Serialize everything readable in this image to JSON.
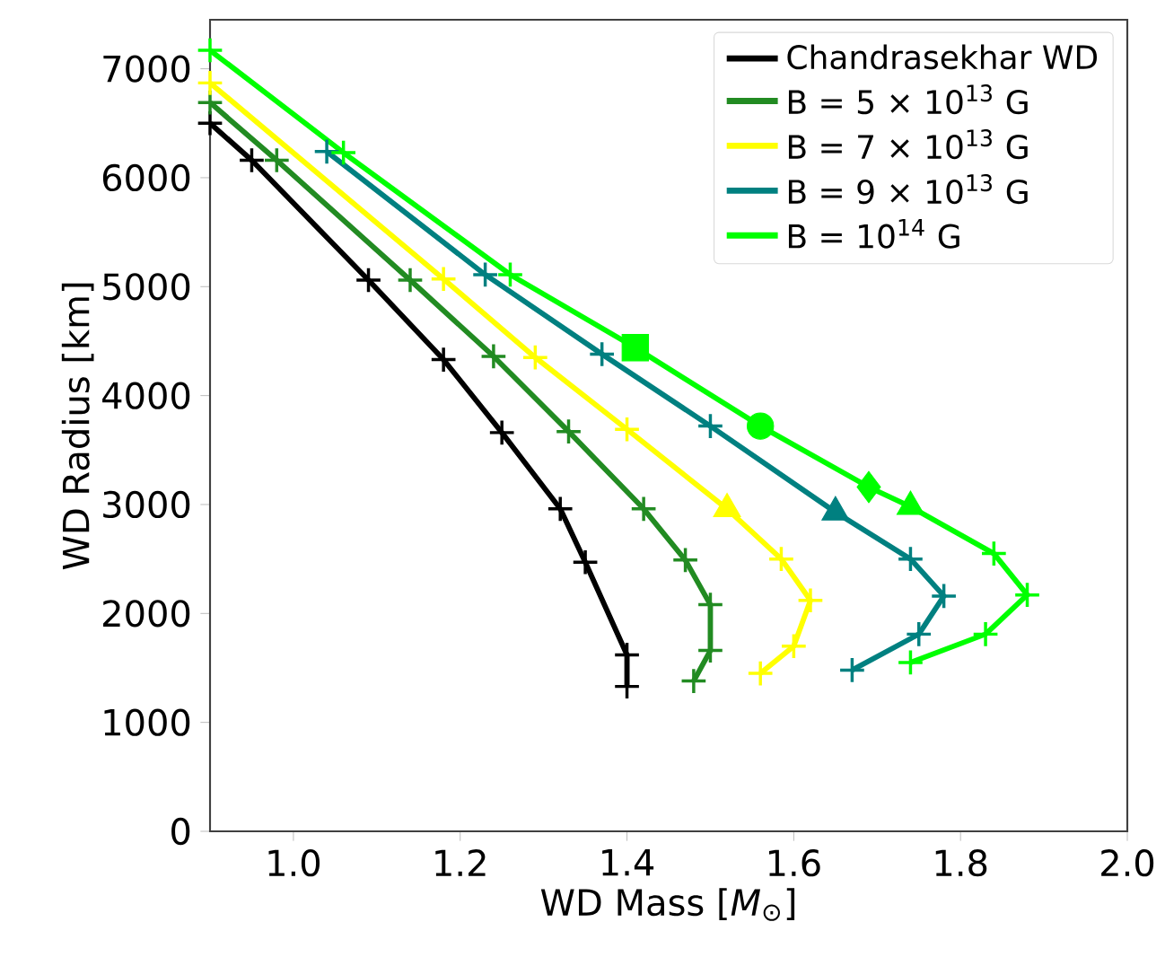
{
  "chart_data": {
    "type": "line",
    "xlabel": "WD Mass [*M*$_{⊙}$]",
    "ylabel": "WD Radius [km]",
    "xlim": [
      0.9,
      2.0
    ],
    "xticks": [
      {
        "value": 1.0,
        "label": "1.0"
      },
      1.2,
      1.4,
      1.6,
      1.8,
      {
        "value": 2.0,
        "label": "2.0"
      }
    ],
    "ylim": [
      0,
      7450
    ],
    "yticks": [
      0,
      1000,
      2000,
      3000,
      4000,
      5000,
      6000,
      7000
    ],
    "legend": "top right",
    "grid": false,
    "marker": "cross",
    "line_style": "solid",
    "series": [
      {
        "name": "Chandrasekhar WD",
        "color": "#000000",
        "x": [
          0.9,
          0.95,
          1.09,
          1.18,
          1.25,
          1.32,
          1.35,
          1.4,
          1.4
        ],
        "values": [
          6500,
          6160,
          5060,
          4330,
          3660,
          2960,
          2470,
          1620,
          1330
        ]
      },
      {
        "name": "B = 5 × 10$^{13}$ G",
        "color": "#228b22",
        "x": [
          0.9,
          0.98,
          1.14,
          1.24,
          1.33,
          1.42,
          1.47,
          1.5,
          1.5,
          1.48
        ],
        "values": [
          6690,
          6160,
          5060,
          4360,
          3670,
          2960,
          2490,
          2080,
          1660,
          1380
        ]
      },
      {
        "name": "B = 7 × 10$^{13}$ G",
        "color": "#ffff00",
        "x": [
          0.9,
          1.18,
          1.29,
          1.4,
          1.52,
          1.585,
          1.62,
          1.6,
          1.56
        ],
        "values": [
          6870,
          5070,
          4350,
          3690,
          2960,
          2500,
          2120,
          1700,
          1450
        ]
      },
      {
        "name": "B = 9 × 10$^{13}$ G",
        "color": "#008080",
        "x": [
          1.04,
          1.23,
          1.37,
          1.5,
          1.65,
          1.74,
          1.78,
          1.75,
          1.67
        ],
        "values": [
          6240,
          5110,
          4380,
          3720,
          2930,
          2500,
          2160,
          1810,
          1480
        ]
      },
      {
        "name": "B = 10$^{14}$ G",
        "color": "#00ff00",
        "x": [
          0.9,
          1.06,
          1.26,
          1.41,
          1.56,
          1.69,
          1.74,
          1.84,
          1.88,
          1.83,
          1.74
        ],
        "values": [
          7170,
          6230,
          5110,
          4440,
          3720,
          3160,
          2980,
          2550,
          2170,
          1810,
          1550
        ]
      },
      {
        "type": "scatter",
        "marker": "triangle",
        "color": "#ffff00",
        "x": [
          1.52
        ],
        "values": [
          2960
        ]
      },
      {
        "type": "scatter",
        "marker": "triangle",
        "color": "#008080",
        "x": [
          1.65
        ],
        "values": [
          2930
        ]
      },
      {
        "type": "scatter",
        "marker": "square",
        "color": "#00ff00",
        "x": [
          1.41
        ],
        "values": [
          4440
        ]
      },
      {
        "type": "scatter",
        "marker": "circle",
        "color": "#00ff00",
        "x": [
          1.56
        ],
        "values": [
          3720
        ]
      },
      {
        "type": "scatter",
        "marker": "diamond",
        "color": "#00ff00",
        "x": [
          1.69
        ],
        "values": [
          3160
        ]
      },
      {
        "type": "scatter",
        "marker": "triangle",
        "color": "#00ff00",
        "x": [
          1.74
        ],
        "values": [
          2980
        ]
      }
    ]
  }
}
